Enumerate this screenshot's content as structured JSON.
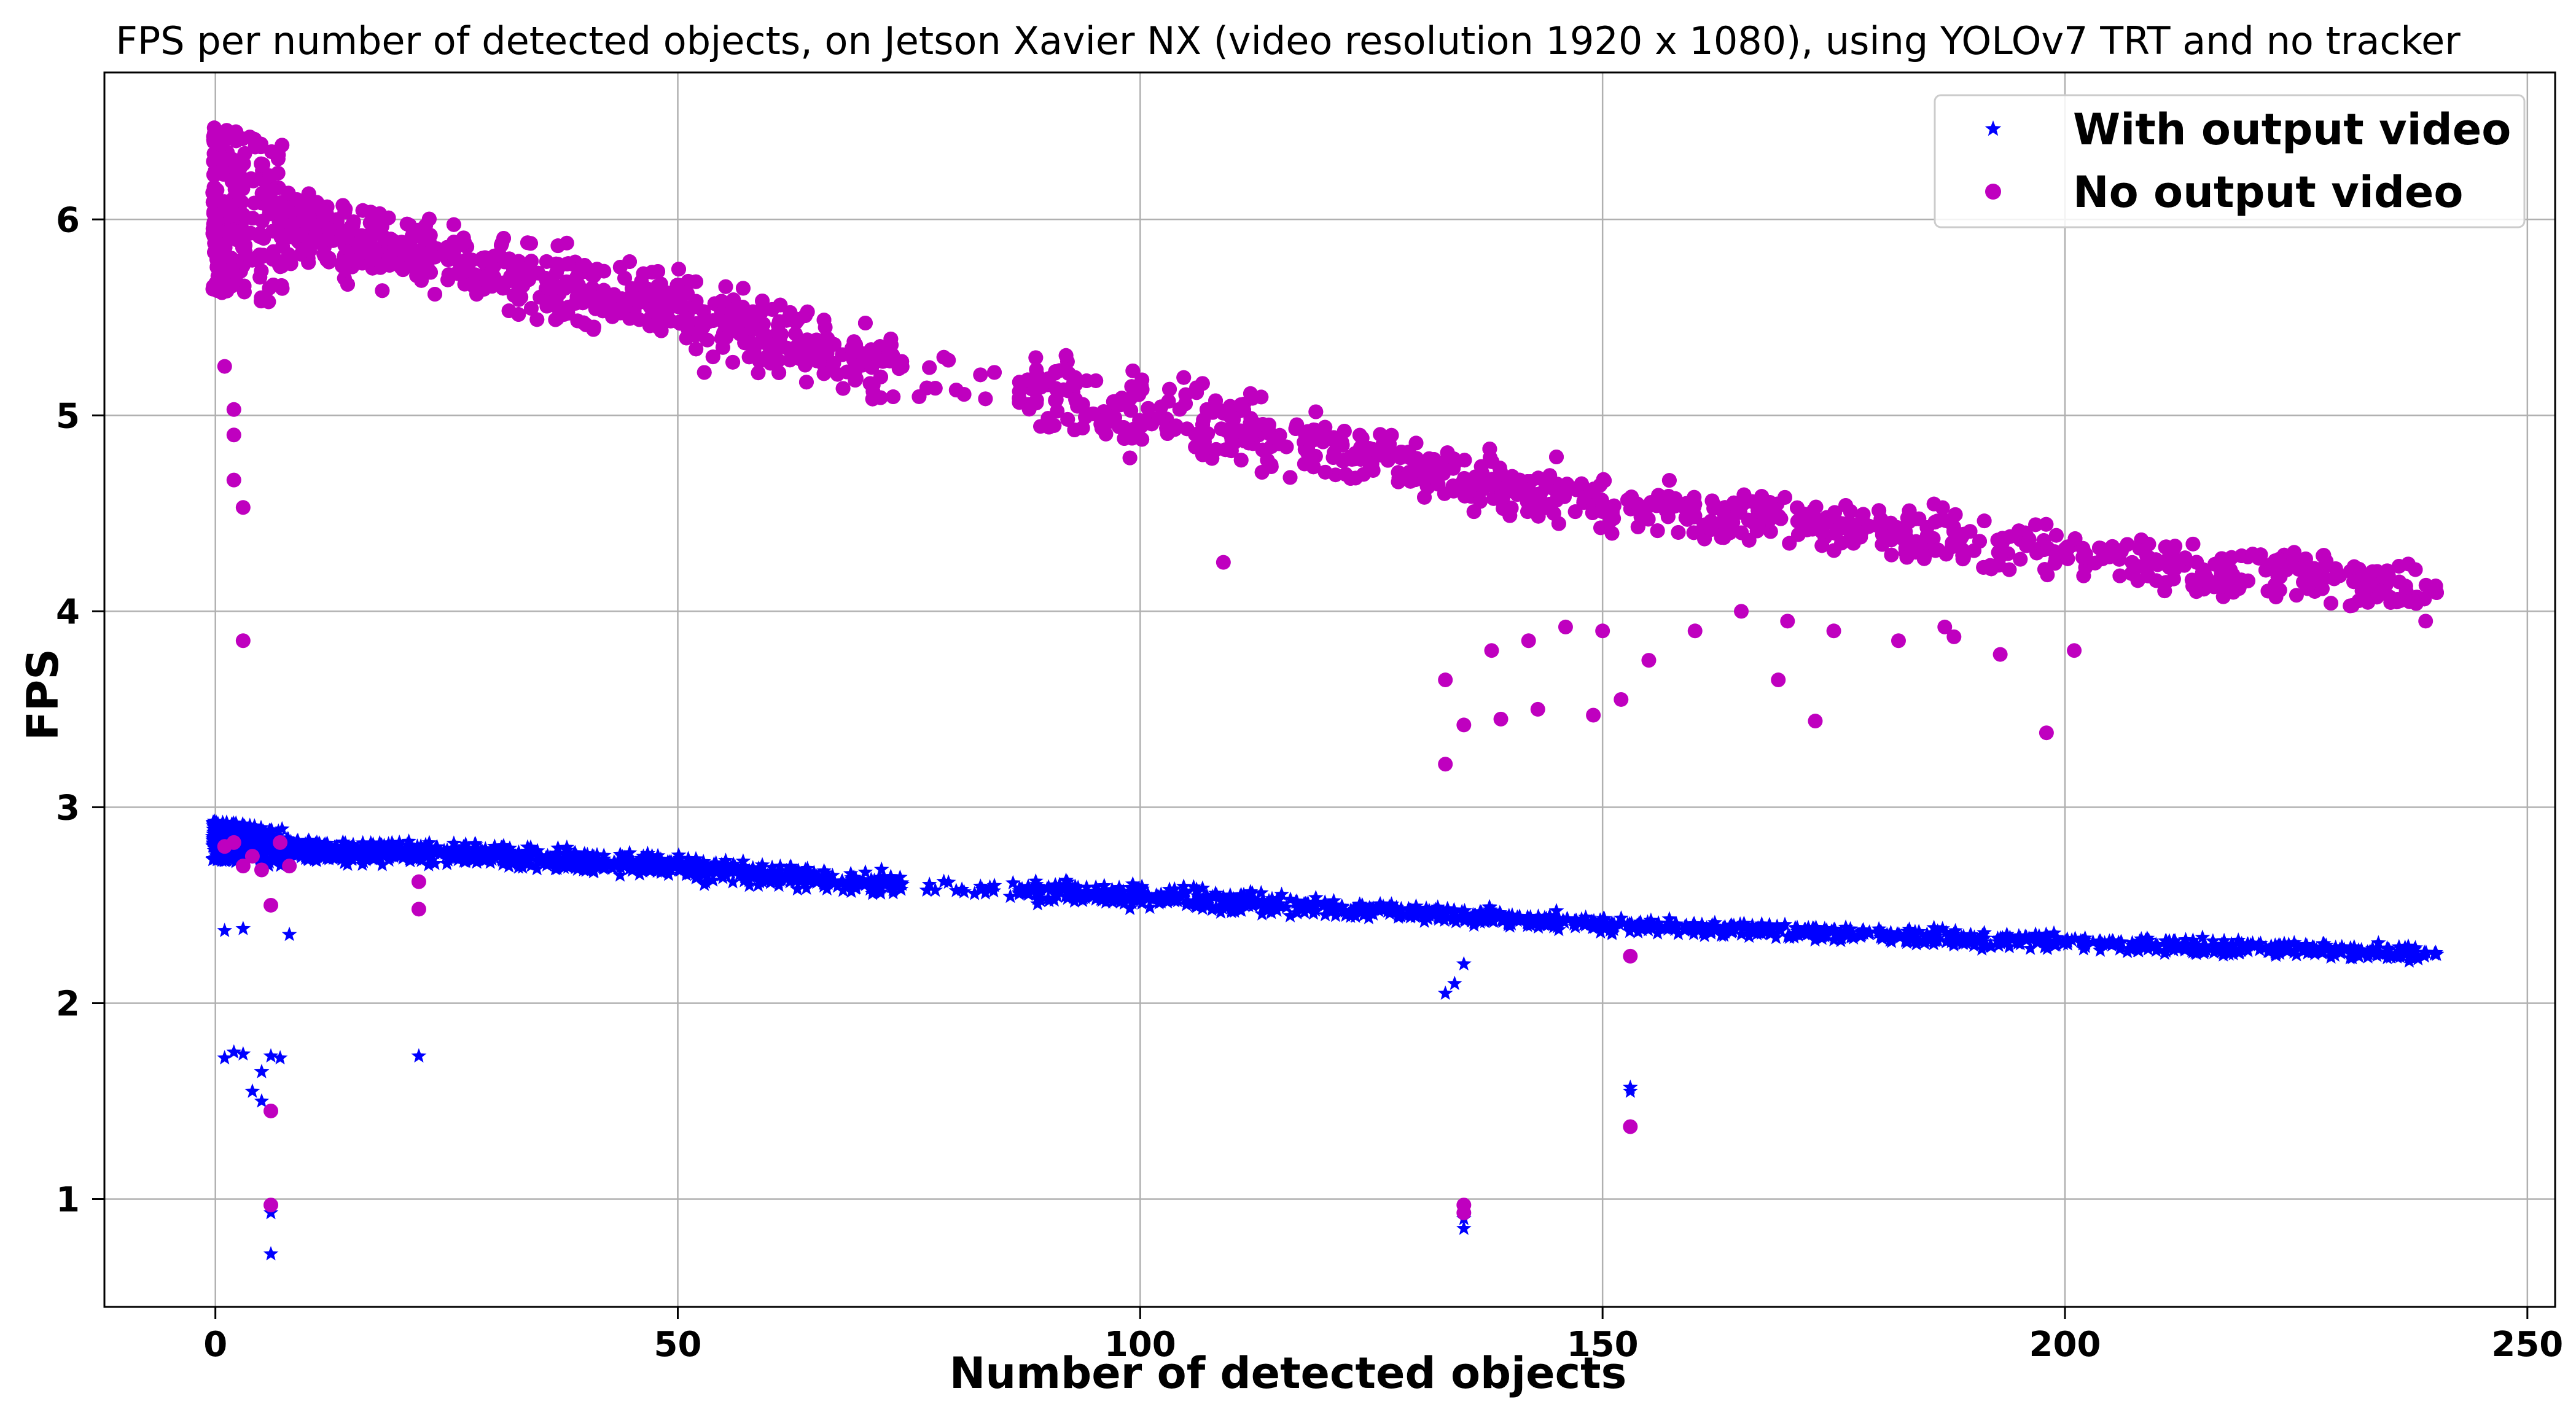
{
  "chart_data": {
    "type": "scatter",
    "title": "FPS per number of detected objects, on Jetson Xavier NX (video resolution 1920 x 1080), using YOLOv7 TRT and no tracker",
    "xlabel": "Number of detected objects",
    "ylabel": "FPS",
    "xlim": [
      -12,
      253
    ],
    "ylim": [
      0.45,
      6.75
    ],
    "xticks": [
      0,
      50,
      100,
      150,
      200,
      250
    ],
    "yticks": [
      1,
      2,
      3,
      4,
      5,
      6
    ],
    "grid": true,
    "legend_position": "top-right",
    "series": [
      {
        "name": "With output video",
        "marker": "star",
        "color": "#0000ff",
        "trend": [
          [
            0,
            2.83
          ],
          [
            10,
            2.78
          ],
          [
            30,
            2.76
          ],
          [
            50,
            2.7
          ],
          [
            70,
            2.62
          ],
          [
            100,
            2.55
          ],
          [
            130,
            2.46
          ],
          [
            150,
            2.4
          ],
          [
            200,
            2.31
          ],
          [
            240,
            2.25
          ]
        ],
        "outliers": [
          [
            1,
            1.72
          ],
          [
            2,
            1.75
          ],
          [
            3,
            1.74
          ],
          [
            4,
            1.55
          ],
          [
            5,
            1.5
          ],
          [
            5,
            1.65
          ],
          [
            6,
            1.73
          ],
          [
            7,
            1.72
          ],
          [
            6,
            0.93
          ],
          [
            6,
            0.72
          ],
          [
            22,
            1.73
          ],
          [
            153,
            1.57
          ],
          [
            153,
            1.55
          ],
          [
            135,
            0.85
          ],
          [
            135,
            0.9
          ],
          [
            133,
            2.05
          ],
          [
            134,
            2.1
          ],
          [
            135,
            2.2
          ],
          [
            1,
            2.37
          ],
          [
            3,
            2.38
          ],
          [
            8,
            2.35
          ]
        ]
      },
      {
        "name": "No output video",
        "marker": "circle",
        "color": "#bf00bf",
        "trend": [
          [
            0,
            6.05
          ],
          [
            10,
            5.95
          ],
          [
            30,
            5.75
          ],
          [
            50,
            5.55
          ],
          [
            70,
            5.3
          ],
          [
            90,
            5.12
          ],
          [
            100,
            5.02
          ],
          [
            120,
            4.85
          ],
          [
            140,
            4.62
          ],
          [
            160,
            4.5
          ],
          [
            180,
            4.4
          ],
          [
            200,
            4.3
          ],
          [
            240,
            4.1
          ]
        ],
        "outliers": [
          [
            1,
            5.25
          ],
          [
            2,
            5.03
          ],
          [
            2,
            4.9
          ],
          [
            2,
            4.67
          ],
          [
            3,
            4.53
          ],
          [
            3,
            3.85
          ],
          [
            1,
            2.8
          ],
          [
            2,
            2.82
          ],
          [
            3,
            2.7
          ],
          [
            4,
            2.75
          ],
          [
            5,
            2.68
          ],
          [
            6,
            2.5
          ],
          [
            7,
            2.82
          ],
          [
            8,
            2.7
          ],
          [
            22,
            2.62
          ],
          [
            22,
            2.48
          ],
          [
            6,
            1.45
          ],
          [
            6,
            0.97
          ],
          [
            153,
            2.24
          ],
          [
            153,
            1.37
          ],
          [
            135,
            0.97
          ],
          [
            135,
            0.93
          ],
          [
            133,
            3.22
          ],
          [
            135,
            3.42
          ],
          [
            139,
            3.45
          ],
          [
            143,
            3.5
          ],
          [
            149,
            3.47
          ],
          [
            152,
            3.55
          ],
          [
            169,
            3.65
          ],
          [
            173,
            3.44
          ],
          [
            198,
            3.38
          ],
          [
            201,
            3.8
          ],
          [
            193,
            3.78
          ],
          [
            109,
            4.25
          ],
          [
            133,
            3.65
          ],
          [
            138,
            3.8
          ],
          [
            142,
            3.85
          ],
          [
            146,
            3.92
          ],
          [
            150,
            3.9
          ],
          [
            155,
            3.75
          ],
          [
            160,
            3.9
          ],
          [
            165,
            4.0
          ],
          [
            170,
            3.95
          ],
          [
            175,
            3.9
          ],
          [
            182,
            3.85
          ],
          [
            187,
            3.92
          ],
          [
            188,
            3.87
          ],
          [
            239,
            3.95
          ]
        ]
      }
    ]
  }
}
